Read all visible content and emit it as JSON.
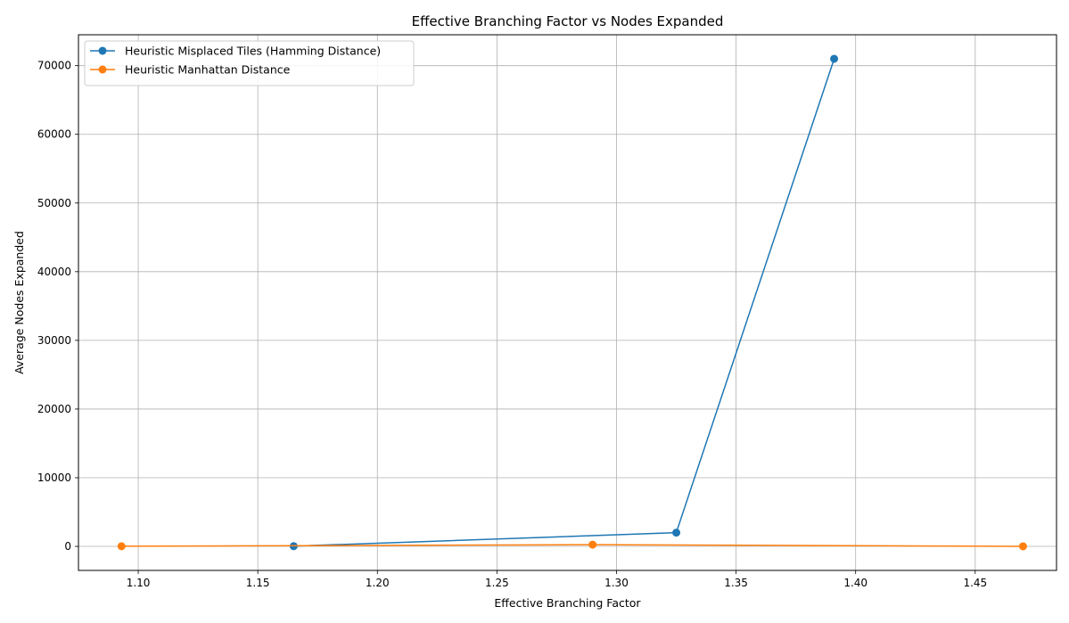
{
  "chart_data": {
    "type": "line",
    "title": "Effective Branching Factor vs Nodes Expanded",
    "xlabel": "Effective Branching Factor",
    "ylabel": "Average Nodes Expanded",
    "xlim": [
      1.075,
      1.484
    ],
    "ylim": [
      -3500,
      74500
    ],
    "xticks": [
      1.1,
      1.15,
      1.2,
      1.25,
      1.3,
      1.35,
      1.4,
      1.45
    ],
    "xtick_labels": [
      "1.10",
      "1.15",
      "1.20",
      "1.25",
      "1.30",
      "1.35",
      "1.40",
      "1.45"
    ],
    "yticks": [
      0,
      10000,
      20000,
      30000,
      40000,
      50000,
      60000,
      70000
    ],
    "ytick_labels": [
      "0",
      "10000",
      "20000",
      "30000",
      "40000",
      "50000",
      "60000",
      "70000"
    ],
    "grid": true,
    "legend_position": "top-left",
    "series": [
      {
        "name": "Heuristic Misplaced Tiles (Hamming Distance)",
        "color": "#1f77b4",
        "x": [
          1.165,
          1.325,
          1.391
        ],
        "y": [
          30,
          2000,
          71000
        ]
      },
      {
        "name": "Heuristic Manhattan Distance",
        "color": "#ff7f0e",
        "x": [
          1.093,
          1.29,
          1.47
        ],
        "y": [
          20,
          250,
          10
        ]
      }
    ]
  }
}
